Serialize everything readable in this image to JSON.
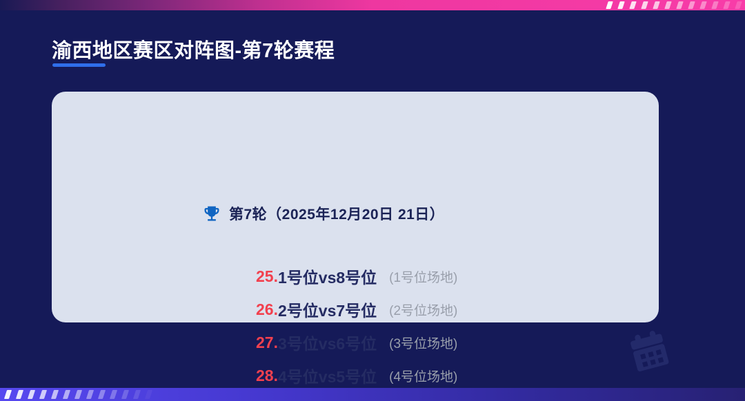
{
  "page": {
    "title": "渝西地区赛区对阵图-第7轮赛程"
  },
  "card": {
    "round_label": "第7轮（2025年12月20日 21日）",
    "matches": [
      {
        "no": "25.",
        "pairing": "1号位vs8号位",
        "venue": "(1号位场地)"
      },
      {
        "no": "26.",
        "pairing": "2号位vs7号位",
        "venue": "(2号位场地)"
      },
      {
        "no": "27.",
        "pairing": "3号位vs6号位",
        "venue": "(3号位场地)"
      },
      {
        "no": "28.",
        "pairing": "4号位vs5号位",
        "venue": "(4号位场地)"
      }
    ]
  },
  "icons": {
    "header_icon": "trophy-icon",
    "watermark_icon": "calendar-icon"
  },
  "colors": {
    "background_navy": "#151a58",
    "card_bg": "#dbe1ee",
    "accent_pink": "#f83ca8",
    "accent_purple": "#5749f0",
    "title_underline_blue": "#2f6eea",
    "trophy_blue": "#1065c2",
    "match_number_red": "#f2404e",
    "match_text_navy": "#252c63",
    "venue_gray": "#999fab",
    "header_text_navy": "#1b2356",
    "title_white": "#ffffff"
  }
}
